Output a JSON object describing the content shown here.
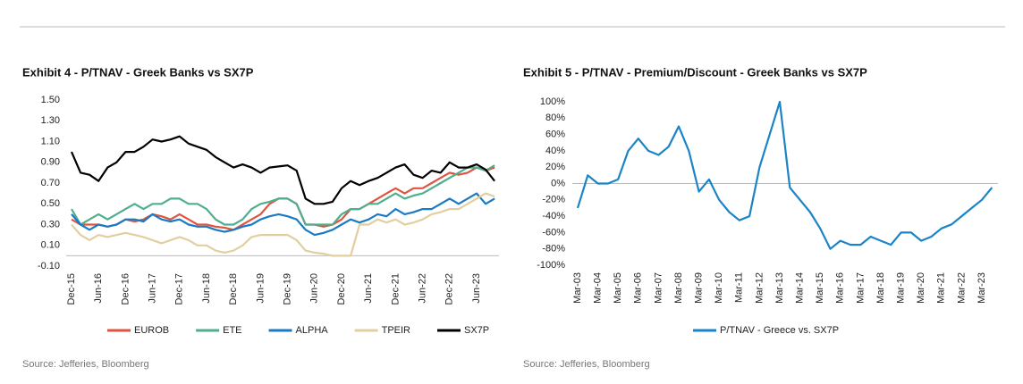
{
  "chart_data": [
    {
      "type": "line",
      "title": "Exhibit 4 - P/TNAV - Greek Banks vs SX7P",
      "source": "Source: Jefferies, Bloomberg",
      "categories": [
        "Dec-15",
        null,
        null,
        "Jun-16",
        null,
        null,
        "Dec-16",
        null,
        null,
        "Jun-17",
        null,
        null,
        "Dec-17",
        null,
        null,
        "Jun-18",
        null,
        null,
        "Dec-18",
        null,
        null,
        "Jun-19",
        null,
        null,
        "Dec-19",
        null,
        null,
        "Jun-20",
        null,
        null,
        "Dec-20",
        null,
        null,
        "Jun-21",
        null,
        null,
        "Dec-21",
        null,
        null,
        "Jun-22",
        null,
        null,
        "Dec-22",
        null,
        null,
        "Jun-23",
        null,
        null
      ],
      "ylim": [
        -0.1,
        1.5
      ],
      "yticks": [
        {
          "value": 1.5,
          "label": "1.50"
        },
        {
          "value": 1.3,
          "label": "1.30"
        },
        {
          "value": 1.1,
          "label": "1.10"
        },
        {
          "value": 0.9,
          "label": "0.90"
        },
        {
          "value": 0.7,
          "label": "0.70"
        },
        {
          "value": 0.5,
          "label": "0.50"
        },
        {
          "value": 0.3,
          "label": "0.30"
        },
        {
          "value": 0.1,
          "label": "0.10"
        },
        {
          "value": -0.1,
          "label": "-0.10"
        }
      ],
      "legend": "bottom",
      "series": [
        {
          "name": "EUROB",
          "color": "#e0533f",
          "values": [
            0.35,
            0.3,
            0.3,
            0.3,
            0.28,
            0.3,
            0.35,
            0.33,
            0.35,
            0.4,
            0.38,
            0.35,
            0.4,
            0.35,
            0.3,
            0.3,
            0.28,
            0.27,
            0.25,
            0.3,
            0.35,
            0.4,
            0.5,
            0.55,
            0.55,
            0.5,
            0.3,
            0.3,
            0.28,
            0.3,
            0.35,
            0.45,
            0.45,
            0.5,
            0.55,
            0.6,
            0.65,
            0.6,
            0.65,
            0.65,
            0.7,
            0.75,
            0.8,
            0.78,
            0.8,
            0.85,
            0.82,
            0.85
          ]
        },
        {
          "name": "ETE",
          "color": "#4fae8e",
          "values": [
            0.45,
            0.3,
            0.35,
            0.4,
            0.35,
            0.4,
            0.45,
            0.5,
            0.45,
            0.5,
            0.5,
            0.55,
            0.55,
            0.5,
            0.5,
            0.45,
            0.35,
            0.3,
            0.3,
            0.35,
            0.45,
            0.5,
            0.52,
            0.55,
            0.55,
            0.5,
            0.3,
            0.3,
            0.3,
            0.3,
            0.4,
            0.45,
            0.45,
            0.5,
            0.5,
            0.55,
            0.6,
            0.55,
            0.58,
            0.6,
            0.65,
            0.7,
            0.75,
            0.8,
            0.85,
            0.85,
            0.82,
            0.87
          ]
        },
        {
          "name": "ALPHA",
          "color": "#1a7ac4",
          "values": [
            0.4,
            0.3,
            0.25,
            0.3,
            0.28,
            0.3,
            0.35,
            0.35,
            0.33,
            0.4,
            0.35,
            0.33,
            0.35,
            0.3,
            0.28,
            0.28,
            0.25,
            0.23,
            0.25,
            0.28,
            0.3,
            0.35,
            0.38,
            0.4,
            0.38,
            0.35,
            0.25,
            0.2,
            0.22,
            0.25,
            0.3,
            0.35,
            0.32,
            0.35,
            0.4,
            0.38,
            0.45,
            0.4,
            0.42,
            0.45,
            0.45,
            0.5,
            0.55,
            0.5,
            0.55,
            0.6,
            0.5,
            0.55
          ]
        },
        {
          "name": "TPEIR",
          "color": "#e2cfa0",
          "values": [
            0.3,
            0.2,
            0.15,
            0.2,
            0.18,
            0.2,
            0.22,
            0.2,
            0.18,
            0.15,
            0.12,
            0.15,
            0.18,
            0.15,
            0.1,
            0.1,
            0.05,
            0.03,
            0.05,
            0.1,
            0.18,
            0.2,
            0.2,
            0.2,
            0.2,
            0.15,
            0.05,
            0.03,
            0.02,
            0.0,
            0.0,
            0.0,
            0.3,
            0.3,
            0.35,
            0.32,
            0.35,
            0.3,
            0.32,
            0.35,
            0.4,
            0.42,
            0.45,
            0.45,
            0.5,
            0.55,
            0.6,
            0.57
          ]
        },
        {
          "name": "SX7P",
          "color": "#000000",
          "values": [
            1.0,
            0.8,
            0.78,
            0.72,
            0.85,
            0.9,
            1.0,
            1.0,
            1.05,
            1.12,
            1.1,
            1.12,
            1.15,
            1.08,
            1.05,
            1.02,
            0.95,
            0.9,
            0.85,
            0.88,
            0.85,
            0.8,
            0.85,
            0.86,
            0.87,
            0.82,
            0.55,
            0.5,
            0.5,
            0.52,
            0.65,
            0.72,
            0.68,
            0.72,
            0.75,
            0.8,
            0.85,
            0.88,
            0.78,
            0.75,
            0.82,
            0.8,
            0.9,
            0.85,
            0.85,
            0.88,
            0.83,
            0.72
          ]
        }
      ]
    },
    {
      "type": "line",
      "title": "Exhibit 5 - P/TNAV - Premium/Discount - Greek Banks vs SX7P",
      "source": "Source: Jefferies, Bloomberg",
      "categories": [
        "Mar-03",
        null,
        "Mar-04",
        null,
        "Mar-05",
        null,
        "Mar-06",
        null,
        "Mar-07",
        null,
        "Mar-08",
        null,
        "Mar-09",
        null,
        "Mar-10",
        null,
        "Mar-11",
        null,
        "Mar-12",
        null,
        "Mar-13",
        null,
        "Mar-14",
        null,
        "Mar-15",
        null,
        "Mar-16",
        null,
        "Mar-17",
        null,
        "Mar-18",
        null,
        "Mar-19",
        null,
        "Mar-20",
        null,
        "Mar-21",
        null,
        "Mar-22",
        null,
        "Mar-23",
        null
      ],
      "ylim": [
        -100,
        100
      ],
      "yticks": [
        {
          "value": 100,
          "label": "100%"
        },
        {
          "value": 80,
          "label": "80%"
        },
        {
          "value": 60,
          "label": "60%"
        },
        {
          "value": 40,
          "label": "40%"
        },
        {
          "value": 20,
          "label": "20%"
        },
        {
          "value": 0,
          "label": "0%"
        },
        {
          "value": -20,
          "label": "-20%"
        },
        {
          "value": -40,
          "label": "-40%"
        },
        {
          "value": -60,
          "label": "-60%"
        },
        {
          "value": -80,
          "label": "-80%"
        },
        {
          "value": -100,
          "label": "-100%"
        }
      ],
      "legend": "bottom",
      "series": [
        {
          "name": "P/TNAV - Greece vs. SX7P",
          "color": "#1a84c7",
          "values": [
            -30,
            10,
            0,
            0,
            5,
            40,
            55,
            40,
            35,
            45,
            70,
            40,
            -10,
            5,
            -20,
            -35,
            -45,
            -40,
            20,
            60,
            100,
            -5,
            -20,
            -35,
            -55,
            -80,
            -70,
            -75,
            -75,
            -65,
            -70,
            -75,
            -60,
            -60,
            -70,
            -65,
            -55,
            -50,
            -40,
            -30,
            -20,
            -5
          ]
        }
      ]
    }
  ]
}
